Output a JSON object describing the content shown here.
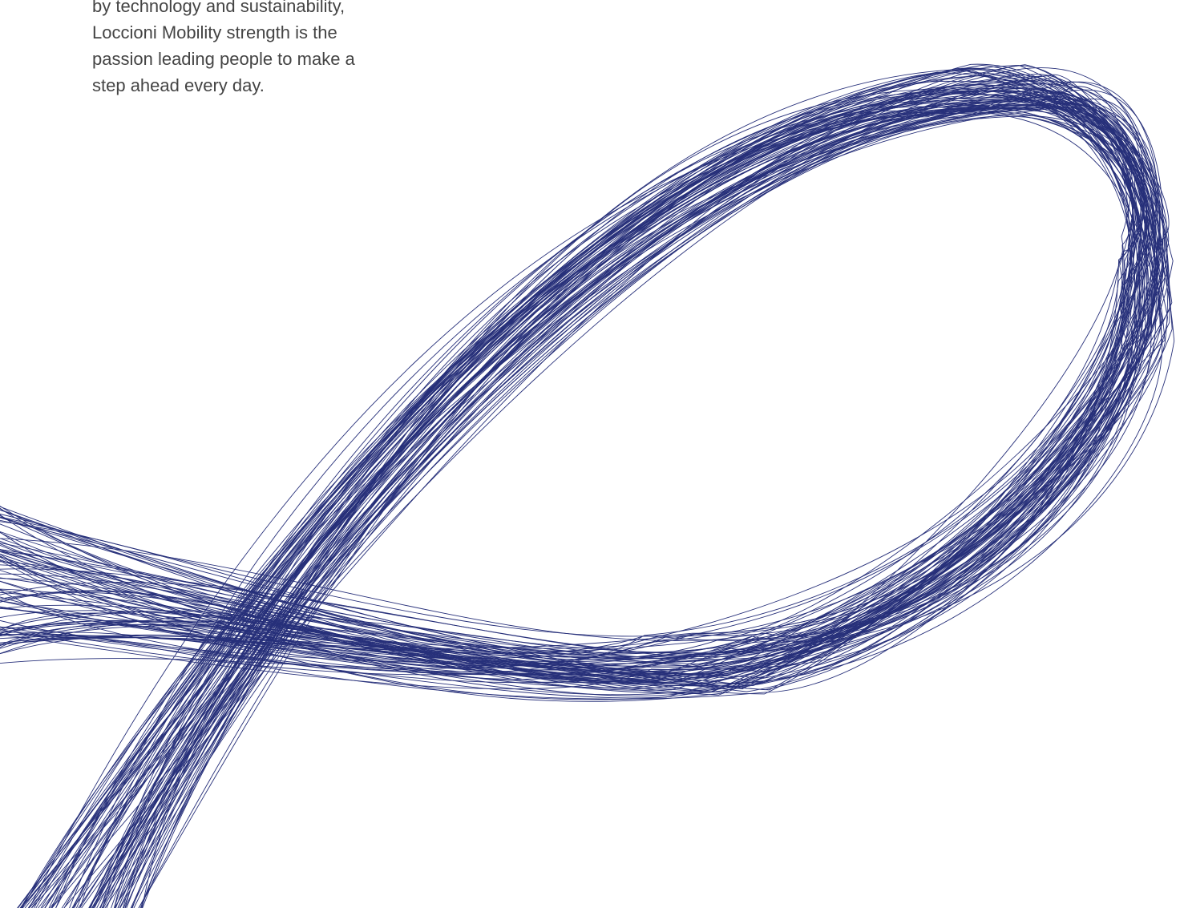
{
  "paragraph": {
    "lines": [
      "by technology and sustainability,",
      "Loccioni Mobility strength is the",
      "passion leading people to make a",
      "step ahead every day."
    ]
  }
}
